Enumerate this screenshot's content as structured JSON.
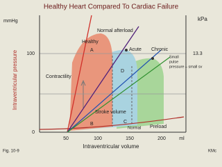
{
  "title": "Healthy Heart Compared To Cardiac Failure",
  "axes": {
    "y_unit_left": "mmHg",
    "y_unit_right": "kPa",
    "y_label": "Intraventricular pressure",
    "x_label": "Intraventricular volume",
    "x_unit": "ml",
    "y_ticks": [
      0,
      100
    ],
    "y2_ticks": [
      13.3
    ],
    "x_ticks": [
      50,
      100,
      150,
      200
    ]
  },
  "labels": {
    "normal_afterload": "Normal afterload",
    "healthy": "Healthy",
    "a": "A",
    "acute": "Acute",
    "chronic": "Chronic",
    "d": "D",
    "contractility": "Contractility",
    "stroke_volume": "Stroke volume",
    "b": "B",
    "c": "C",
    "normal": "Normal",
    "preload": "Preload",
    "annotation_lines": [
      "Small",
      "pulse",
      "pressure – small sv"
    ]
  },
  "footer": {
    "figure": "Fig. 10-9",
    "credit": "KMc"
  }
}
